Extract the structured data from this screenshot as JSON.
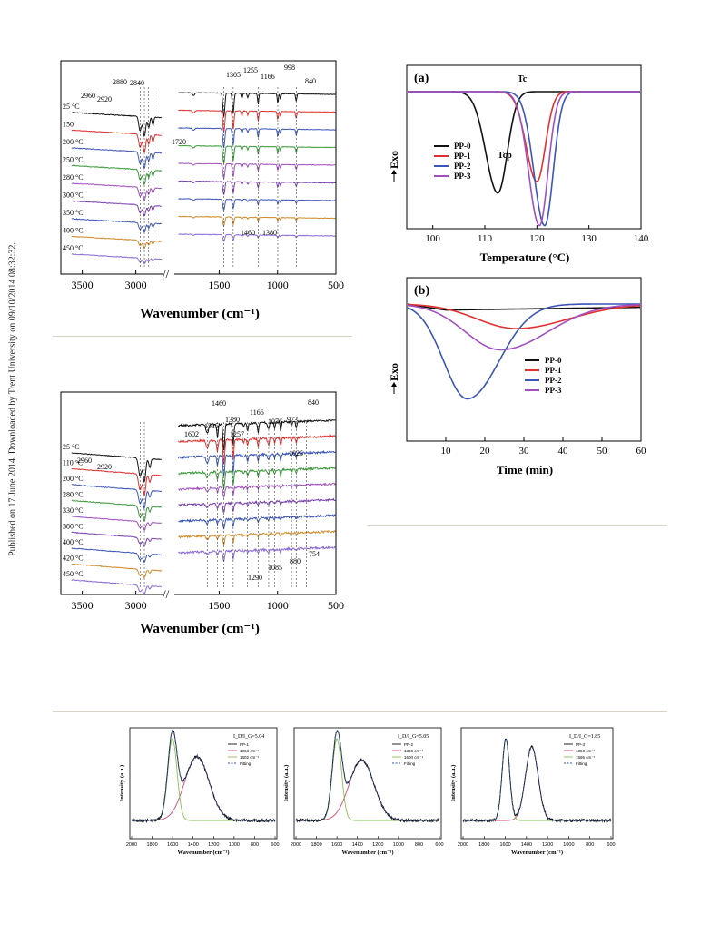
{
  "sidebar_text": "Published on 17 June 2014. Downloaded by Trent University on 09/10/2014 08:32:32.",
  "colors": {
    "black": "#111111",
    "red": "#e0312f",
    "blue": "#3b56b8",
    "green": "#3a9a3a",
    "purple": "#a050c0",
    "violet": "#7a40b0",
    "orange": "#d08a2a",
    "lavender": "#8a6ad8",
    "rule": "#d8d2c4"
  },
  "chart_data": [
    {
      "id": "ftir-1",
      "type": "line",
      "xlabel": "Wavenumber (cm⁻¹)",
      "x_ticks": [
        3500,
        3000,
        1500,
        1000,
        500
      ],
      "x_breaks": [
        "//"
      ],
      "series": [
        {
          "name": "25 °C"
        },
        {
          "name": "150"
        },
        {
          "name": "200 °C"
        },
        {
          "name": "250 °C"
        },
        {
          "name": "280 °C"
        },
        {
          "name": "300 °C"
        },
        {
          "name": "350 °C"
        },
        {
          "name": "400 °C"
        },
        {
          "name": "450 °C"
        }
      ],
      "annotations": [
        "2960",
        "2920",
        "2880",
        "2840",
        "1305",
        "1255",
        "1166",
        "998",
        "840",
        "1720",
        "1460",
        "1380"
      ]
    },
    {
      "id": "dsc-a",
      "type": "line",
      "panel": "(a)",
      "xlabel": "Temperature (°C)",
      "ylabel": "Exo",
      "xlim": [
        95,
        140
      ],
      "x_ticks": [
        100,
        110,
        120,
        130,
        140
      ],
      "legend": "bottom-left",
      "series": [
        {
          "name": "PP-0",
          "peak_x": 112.5,
          "depth": 0.62
        },
        {
          "name": "PP-1",
          "peak_x": 120.0,
          "depth": 0.55
        },
        {
          "name": "PP-2",
          "peak_x": 121.5,
          "depth": 0.82
        },
        {
          "name": "PP-3",
          "peak_x": 120.5,
          "depth": 0.82
        }
      ],
      "annotations": [
        "Tc",
        "Tcp"
      ]
    },
    {
      "id": "dsc-b",
      "type": "line",
      "panel": "(b)",
      "xlabel": "Time (min)",
      "ylabel": "Exo",
      "xlim": [
        0,
        60
      ],
      "x_ticks": [
        10,
        20,
        30,
        40,
        50,
        60
      ],
      "legend": "right",
      "series": [
        {
          "name": "PP-0",
          "peak_x": 28,
          "depth": 0.04
        },
        {
          "name": "PP-1",
          "peak_x": 28,
          "depth": 0.15
        },
        {
          "name": "PP-2",
          "peak_x": 15.5,
          "depth": 0.58
        },
        {
          "name": "PP-3",
          "peak_x": 24,
          "depth": 0.28
        }
      ]
    },
    {
      "id": "ftir-2",
      "type": "line",
      "xlabel": "Wavenumber (cm⁻¹)",
      "x_ticks": [
        3500,
        3000,
        1500,
        1000,
        500
      ],
      "x_breaks": [
        "//"
      ],
      "series": [
        {
          "name": "25 °C"
        },
        {
          "name": "110 °C"
        },
        {
          "name": "200 °C"
        },
        {
          "name": "280 °C"
        },
        {
          "name": "330 °C"
        },
        {
          "name": "380 °C"
        },
        {
          "name": "400 °C"
        },
        {
          "name": "420 °C"
        },
        {
          "name": "450 °C"
        }
      ],
      "annotations": [
        "2960",
        "2920",
        "1602",
        "1515",
        "1460",
        "1380",
        "1257",
        "1166",
        "1076",
        "973",
        "840",
        "1025",
        "1290",
        "1085",
        "880",
        "754"
      ]
    },
    {
      "id": "raman-1",
      "type": "line",
      "ylabel": "Intensity (a.u.)",
      "xlabel": "Wavenumber (cm⁻¹)",
      "x_ticks": [
        2000,
        1800,
        1600,
        1400,
        1200,
        1000,
        800,
        600
      ],
      "ratio_label": "I_D/I_G=5.04",
      "legend": [
        "PP-1",
        "1363 cm⁻¹",
        "1602 cm⁻¹",
        "Fitting"
      ]
    },
    {
      "id": "raman-2",
      "type": "line",
      "ylabel": "Intensity (a.u.)",
      "xlabel": "Wavenumber (cm⁻¹)",
      "x_ticks": [
        2000,
        1800,
        1600,
        1400,
        1200,
        1000,
        800,
        600
      ],
      "ratio_label": "I_D/I_G=5.05",
      "legend": [
        "PP-2",
        "1360 cm⁻¹",
        "1600 cm⁻¹",
        "Fitting"
      ]
    },
    {
      "id": "raman-3",
      "type": "line",
      "ylabel": "Intensity (a.u.)",
      "xlabel": "Wavenumber (cm⁻¹)",
      "x_ticks": [
        2000,
        1800,
        1600,
        1400,
        1200,
        1000,
        800,
        600
      ],
      "ratio_label": "I_D/I_G=1.85",
      "legend": [
        "PP-3",
        "1350 cm⁻¹",
        "1595 cm⁻¹",
        "Fitting"
      ]
    }
  ]
}
